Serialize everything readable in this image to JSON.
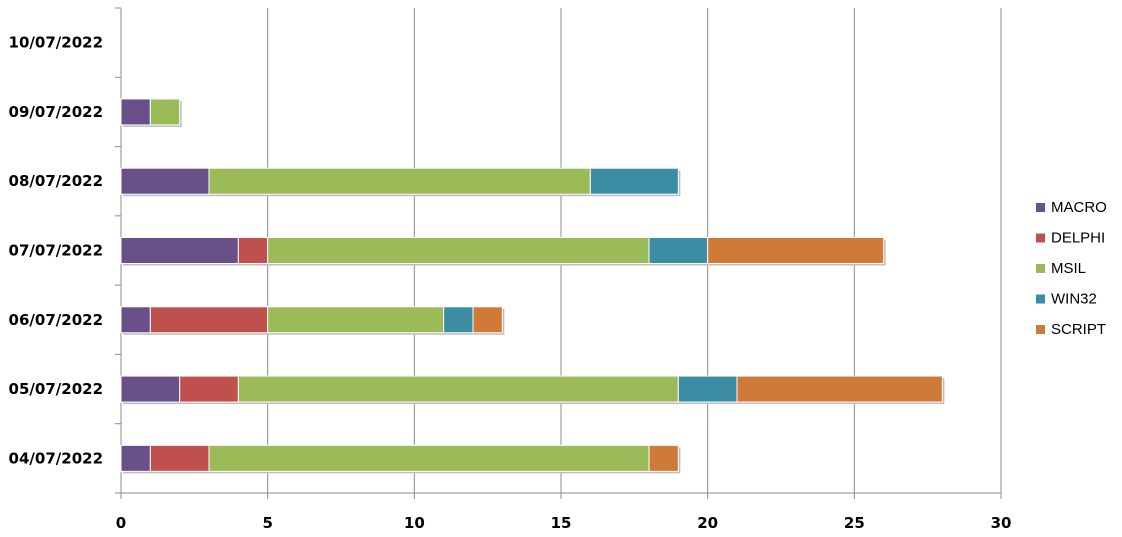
{
  "chart_data": {
    "type": "bar",
    "orientation": "horizontal",
    "stacked": true,
    "categories": [
      "04/07/2022",
      "05/07/2022",
      "06/07/2022",
      "07/07/2022",
      "08/07/2022",
      "09/07/2022",
      "10/07/2022"
    ],
    "series": [
      {
        "name": "MACRO",
        "color": "#6a5089",
        "values": [
          1,
          2,
          1,
          4,
          3,
          1,
          0
        ]
      },
      {
        "name": "DELPHI",
        "color": "#c0504d",
        "values": [
          2,
          2,
          4,
          1,
          0,
          0,
          0
        ]
      },
      {
        "name": "MSIL",
        "color": "#9bbb59",
        "values": [
          15,
          15,
          6,
          13,
          13,
          1,
          0
        ]
      },
      {
        "name": "WIN32",
        "color": "#3c8da3",
        "values": [
          0,
          2,
          1,
          2,
          3,
          0,
          0
        ]
      },
      {
        "name": "SCRIPT",
        "color": "#d07a3a",
        "values": [
          1,
          7,
          1,
          6,
          0,
          0,
          0
        ]
      }
    ],
    "xlim": [
      0,
      30
    ],
    "xticks": [
      "0",
      "5",
      "10",
      "15",
      "20",
      "25",
      "30"
    ],
    "grid": true,
    "legend": "right"
  }
}
